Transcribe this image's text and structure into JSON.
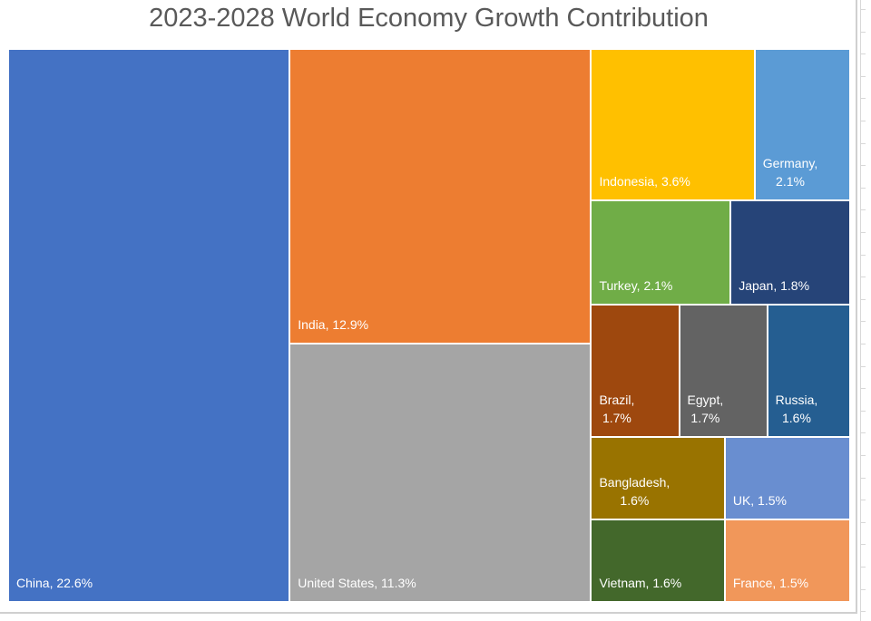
{
  "chart_data": {
    "type": "treemap",
    "title": "2023-2028 World Economy Growth Contribution",
    "unit": "%",
    "items": [
      {
        "name": "China",
        "value": 22.6,
        "label_line1": "China, 22.6%",
        "label_line2": "",
        "color": "#4472C4"
      },
      {
        "name": "India",
        "value": 12.9,
        "label_line1": "India, 12.9%",
        "label_line2": "",
        "color": "#ED7D31"
      },
      {
        "name": "United States",
        "value": 11.3,
        "label_line1": "United States, 11.3%",
        "label_line2": "",
        "color": "#A5A5A5"
      },
      {
        "name": "Indonesia",
        "value": 3.6,
        "label_line1": "Indonesia, 3.6%",
        "label_line2": "",
        "color": "#FFC000"
      },
      {
        "name": "Germany",
        "value": 2.1,
        "label_line1": "Germany,",
        "label_line2": "2.1%",
        "color": "#5B9BD5"
      },
      {
        "name": "Turkey",
        "value": 2.1,
        "label_line1": "Turkey, 2.1%",
        "label_line2": "",
        "color": "#70AD47"
      },
      {
        "name": "Japan",
        "value": 1.8,
        "label_line1": "Japan, 1.8%",
        "label_line2": "",
        "color": "#264478"
      },
      {
        "name": "Brazil",
        "value": 1.7,
        "label_line1": "Brazil,",
        "label_line2": "1.7%",
        "color": "#9E480E"
      },
      {
        "name": "Egypt",
        "value": 1.7,
        "label_line1": "Egypt,",
        "label_line2": "1.7%",
        "color": "#636363"
      },
      {
        "name": "Russia",
        "value": 1.6,
        "label_line1": "Russia,",
        "label_line2": "1.6%",
        "color": "#255E91"
      },
      {
        "name": "Bangladesh",
        "value": 1.6,
        "label_line1": "Bangladesh,",
        "label_line2": "1.6%",
        "color": "#997300"
      },
      {
        "name": "UK",
        "value": 1.5,
        "label_line1": "UK, 1.5%",
        "label_line2": "",
        "color": "#698ED0"
      },
      {
        "name": "Vietnam",
        "value": 1.6,
        "label_line1": "Vietnam, 1.6%",
        "label_line2": "",
        "color": "#43682B"
      },
      {
        "name": "France",
        "value": 1.5,
        "label_line1": "France, 1.5%",
        "label_line2": "",
        "color": "#F1975A"
      }
    ]
  }
}
